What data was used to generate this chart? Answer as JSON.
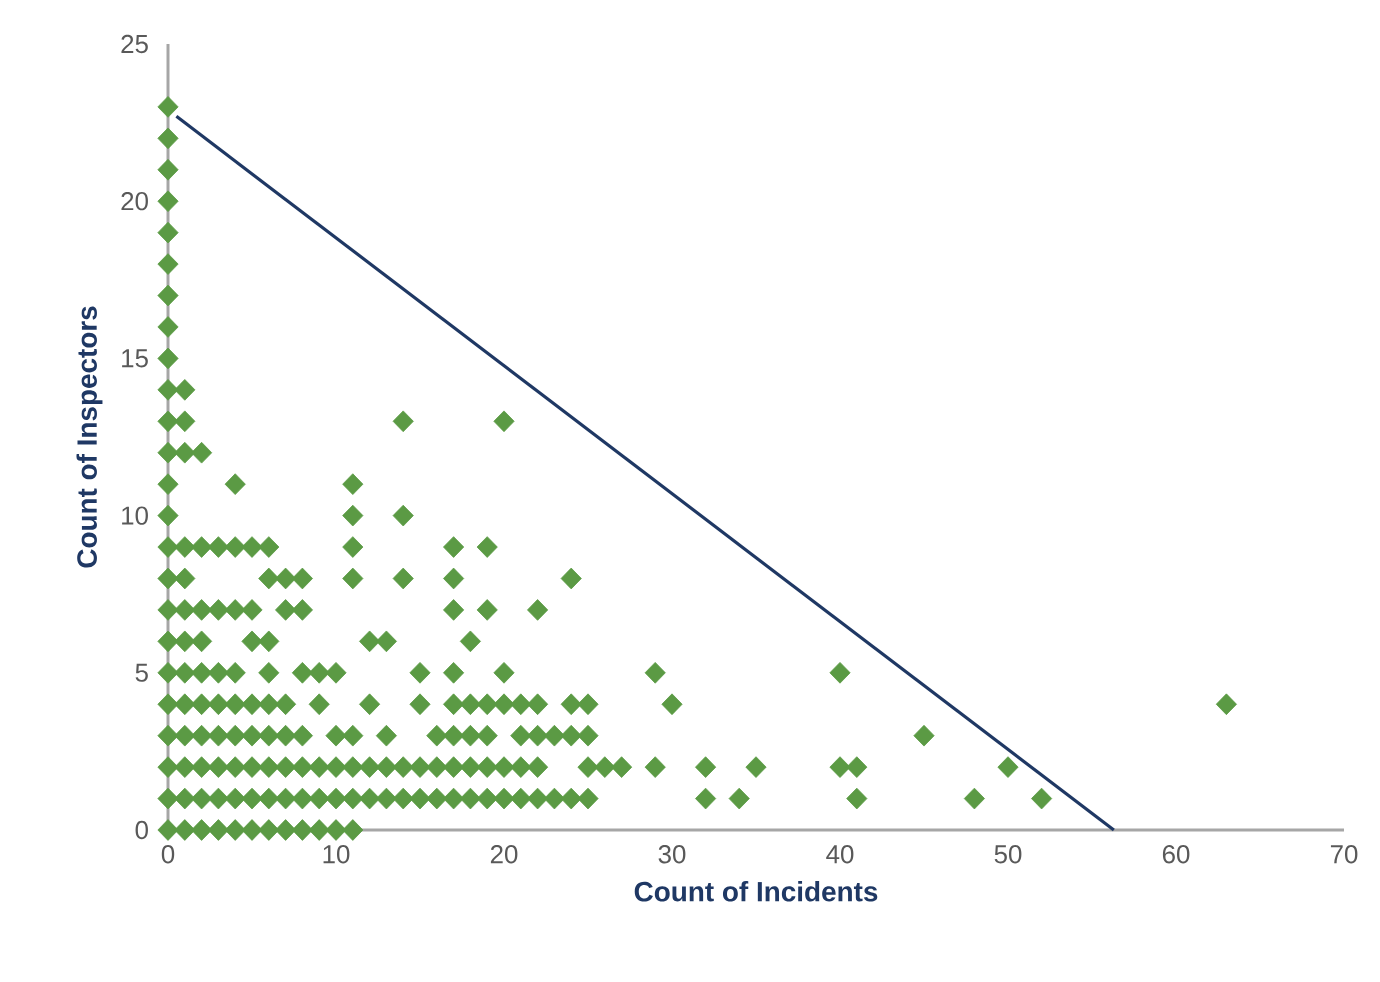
{
  "chart_data": {
    "type": "scatter",
    "xlabel": "Count of Incidents",
    "ylabel": "Count of Inspectors",
    "xlim": [
      0,
      70
    ],
    "xticks": [
      0,
      10,
      20,
      30,
      40,
      50,
      60,
      70
    ],
    "ylim": [
      0,
      25
    ],
    "yticks": [
      0,
      5,
      10,
      15,
      20,
      25
    ],
    "grid": false,
    "marker": "diamond",
    "series": [
      {
        "color": "#5b9a44",
        "x": [
          0,
          0,
          0,
          0,
          0,
          0,
          0,
          0,
          0,
          0,
          1,
          0,
          1,
          14,
          20,
          0,
          1,
          2,
          0,
          4,
          11,
          0,
          11,
          14,
          0,
          1,
          2,
          3,
          4,
          5,
          6,
          11,
          17,
          19,
          0,
          1,
          6,
          7,
          8,
          11,
          14,
          17,
          24,
          0,
          1,
          2,
          3,
          4,
          5,
          7,
          8,
          17,
          19,
          22,
          0,
          1,
          2,
          5,
          6,
          12,
          13,
          18,
          0,
          1,
          2,
          3,
          4,
          6,
          8,
          9,
          10,
          15,
          17,
          20,
          29,
          40,
          0,
          1,
          2,
          3,
          4,
          5,
          6,
          7,
          9,
          12,
          15,
          17,
          18,
          19,
          20,
          21,
          22,
          24,
          25,
          30,
          63,
          0,
          1,
          2,
          3,
          4,
          5,
          6,
          7,
          8,
          10,
          11,
          13,
          16,
          17,
          18,
          19,
          21,
          22,
          23,
          24,
          25,
          45,
          0,
          1,
          2,
          3,
          4,
          5,
          6,
          7,
          8,
          9,
          10,
          11,
          12,
          13,
          14,
          15,
          16,
          17,
          18,
          19,
          20,
          21,
          22,
          25,
          26,
          27,
          29,
          32,
          35,
          40,
          41,
          50,
          0,
          1,
          2,
          3,
          4,
          5,
          6,
          7,
          8,
          9,
          10,
          11,
          12,
          13,
          14,
          15,
          16,
          17,
          18,
          19,
          20,
          21,
          22,
          23,
          24,
          25,
          32,
          34,
          41,
          48,
          52,
          0,
          1,
          2,
          3,
          4,
          5,
          6,
          7,
          8,
          9,
          10,
          11
        ],
        "values": [
          23,
          22,
          21,
          20,
          19,
          18,
          17,
          16,
          15,
          14,
          14,
          13,
          13,
          13,
          13,
          12,
          12,
          12,
          11,
          11,
          11,
          10,
          10,
          10,
          9,
          9,
          9,
          9,
          9,
          9,
          9,
          9,
          9,
          9,
          8,
          8,
          8,
          8,
          8,
          8,
          8,
          8,
          8,
          7,
          7,
          7,
          7,
          7,
          7,
          7,
          7,
          7,
          7,
          7,
          6,
          6,
          6,
          6,
          6,
          6,
          6,
          6,
          5,
          5,
          5,
          5,
          5,
          5,
          5,
          5,
          5,
          5,
          5,
          5,
          5,
          5,
          4,
          4,
          4,
          4,
          4,
          4,
          4,
          4,
          4,
          4,
          4,
          4,
          4,
          4,
          4,
          4,
          4,
          4,
          4,
          4,
          4,
          3,
          3,
          3,
          3,
          3,
          3,
          3,
          3,
          3,
          3,
          3,
          3,
          3,
          3,
          3,
          3,
          3,
          3,
          3,
          3,
          3,
          3,
          2,
          2,
          2,
          2,
          2,
          2,
          2,
          2,
          2,
          2,
          2,
          2,
          2,
          2,
          2,
          2,
          2,
          2,
          2,
          2,
          2,
          2,
          2,
          2,
          2,
          2,
          2,
          2,
          2,
          2,
          2,
          2,
          1,
          1,
          1,
          1,
          1,
          1,
          1,
          1,
          1,
          1,
          1,
          1,
          1,
          1,
          1,
          1,
          1,
          1,
          1,
          1,
          1,
          1,
          1,
          1,
          1,
          1,
          1,
          1,
          1,
          1,
          1,
          0,
          0,
          0,
          0,
          0,
          0,
          0,
          0,
          0,
          0,
          0,
          0
        ]
      },
      {
        "type": "line",
        "color": "#1f3864",
        "marker": "none",
        "line_style": "solid",
        "x": [
          0.5,
          56.3
        ],
        "values": [
          22.7,
          0
        ]
      }
    ]
  }
}
